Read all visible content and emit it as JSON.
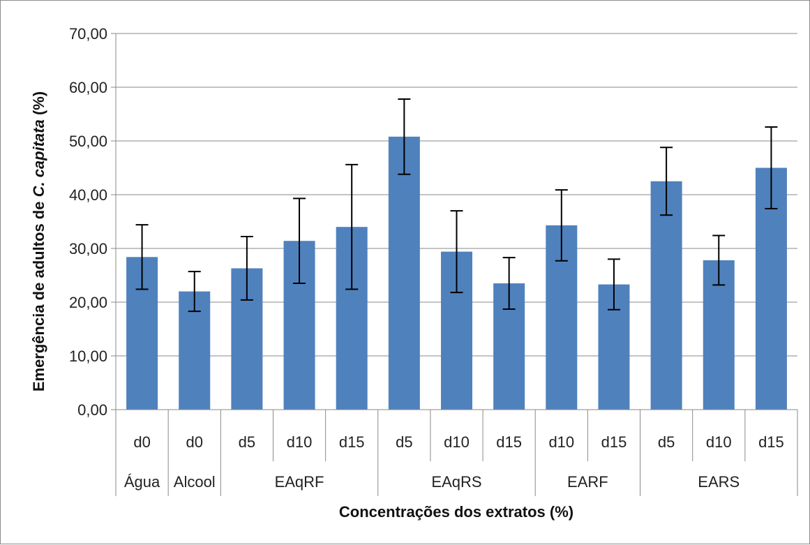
{
  "chart_data": {
    "type": "bar",
    "title": "",
    "ylabel": "Emergência de adultos de C. capitata (%)",
    "ylabel_parts": [
      "Emergência de adultos de ",
      "C. capitata",
      " (%)"
    ],
    "xlabel": "Concentrações dos extratos (%)",
    "ylim": [
      0,
      70
    ],
    "yticks": [
      0,
      10,
      20,
      30,
      40,
      50,
      60,
      70
    ],
    "ytick_labels": [
      "0,00",
      "10,00",
      "20,00",
      "30,00",
      "40,00",
      "50,00",
      "60,00",
      "70,00"
    ],
    "grid": true,
    "legend": "none",
    "bar_color": "#4f81bd",
    "error_color": "#000000",
    "categories": [
      "d0",
      "d0",
      "d5",
      "d10",
      "d15",
      "d5",
      "d10",
      "d15",
      "d10",
      "d15",
      "d5",
      "d10",
      "d15"
    ],
    "groups": [
      {
        "label": "Água",
        "size": 1
      },
      {
        "label": "Alcool",
        "size": 1
      },
      {
        "label": "EAqRF",
        "size": 3
      },
      {
        "label": "EAqRS",
        "size": 3
      },
      {
        "label": "EARF",
        "size": 2
      },
      {
        "label": "EARS",
        "size": 3
      }
    ],
    "series": [
      {
        "values": [
          28.4,
          22.0,
          26.3,
          31.4,
          34.0,
          50.8,
          29.4,
          23.5,
          34.3,
          23.3,
          42.5,
          27.8,
          45.0
        ],
        "error": [
          6.0,
          3.7,
          5.9,
          7.9,
          11.6,
          7.0,
          7.6,
          4.8,
          6.6,
          4.7,
          6.3,
          4.6,
          7.6
        ]
      }
    ]
  }
}
